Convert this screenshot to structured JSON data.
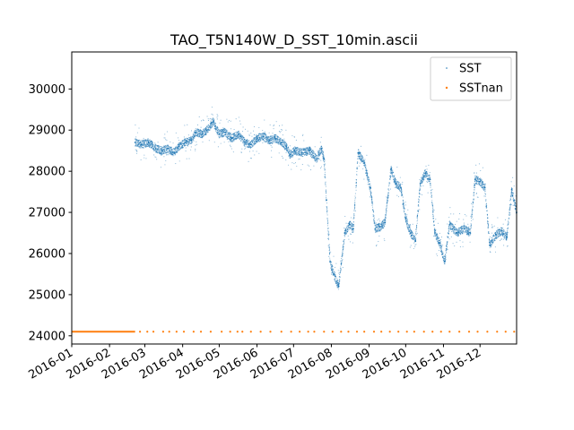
{
  "chart_data": {
    "type": "scatter",
    "title": "TAO_T5N140W_D_SST_10min.ascii",
    "xlabel": "",
    "ylabel": "",
    "x_range": [
      "2016-01-01",
      "2016-12-31"
    ],
    "ylim": [
      23800,
      30900
    ],
    "x_ticks": [
      "2016-01",
      "2016-02",
      "2016-03",
      "2016-04",
      "2016-05",
      "2016-06",
      "2016-07",
      "2016-08",
      "2016-09",
      "2016-10",
      "2016-11",
      "2016-12"
    ],
    "y_ticks": [
      24000,
      25000,
      26000,
      27000,
      28000,
      29000,
      30000
    ],
    "y_tick_labels": [
      "24000",
      "25000",
      "26000",
      "27000",
      "28000",
      "29000",
      "30000"
    ],
    "grid": false,
    "legend_position": "upper right",
    "series": [
      {
        "name": "SST",
        "color": "#1f77b4",
        "x": [
          "2016-02-22",
          "2016-02-27",
          "2016-03-04",
          "2016-03-10",
          "2016-03-15",
          "2016-03-20",
          "2016-03-25",
          "2016-03-29",
          "2016-04-03",
          "2016-04-08",
          "2016-04-12",
          "2016-04-17",
          "2016-04-21",
          "2016-04-26",
          "2016-05-01",
          "2016-05-06",
          "2016-05-11",
          "2016-05-17",
          "2016-05-22",
          "2016-05-27",
          "2016-06-01",
          "2016-06-06",
          "2016-06-11",
          "2016-06-16",
          "2016-06-21",
          "2016-06-25",
          "2016-06-28",
          "2016-07-02",
          "2016-07-08",
          "2016-07-14",
          "2016-07-20",
          "2016-07-24",
          "2016-07-26",
          "2016-07-28",
          "2016-07-31",
          "2016-08-03",
          "2016-08-07",
          "2016-08-12",
          "2016-08-16",
          "2016-08-19",
          "2016-08-23",
          "2016-08-28",
          "2016-09-02",
          "2016-09-06",
          "2016-09-10",
          "2016-09-14",
          "2016-09-19",
          "2016-09-23",
          "2016-09-27",
          "2016-10-01",
          "2016-10-05",
          "2016-10-09",
          "2016-10-13",
          "2016-10-17",
          "2016-10-21",
          "2016-10-25",
          "2016-10-29",
          "2016-11-02",
          "2016-11-06",
          "2016-11-12",
          "2016-11-18",
          "2016-11-23",
          "2016-11-27",
          "2016-12-01",
          "2016-12-05",
          "2016-12-09",
          "2016-12-14",
          "2016-12-19",
          "2016-12-23",
          "2016-12-27",
          "2016-12-31"
        ],
        "y": [
          28700,
          28650,
          28700,
          28550,
          28500,
          28550,
          28450,
          28600,
          28700,
          28750,
          28950,
          28900,
          29000,
          29200,
          28900,
          28950,
          28800,
          28900,
          28700,
          28650,
          28800,
          28850,
          28750,
          28800,
          28700,
          28600,
          28400,
          28500,
          28450,
          28500,
          28300,
          28550,
          28300,
          27300,
          25800,
          25500,
          25200,
          26500,
          26700,
          26600,
          28450,
          28200,
          27600,
          26600,
          26650,
          26750,
          28050,
          27700,
          27600,
          26850,
          26500,
          26300,
          27700,
          27950,
          27800,
          26500,
          26250,
          25800,
          26700,
          26500,
          26600,
          26500,
          27800,
          27750,
          27600,
          26200,
          26450,
          26550,
          26400,
          27550,
          27000
        ]
      },
      {
        "name": "SSTnan",
        "color": "#ff7f0e",
        "value": 24100,
        "dense_range": [
          "2016-01-01",
          "2016-02-22"
        ],
        "x": [
          "2016-02-26",
          "2016-03-03",
          "2016-03-08",
          "2016-03-16",
          "2016-03-21",
          "2016-03-27",
          "2016-04-02",
          "2016-04-10",
          "2016-04-16",
          "2016-04-24",
          "2016-05-03",
          "2016-05-10",
          "2016-05-16",
          "2016-05-20",
          "2016-05-27",
          "2016-06-04",
          "2016-06-12",
          "2016-06-21",
          "2016-06-29",
          "2016-07-06",
          "2016-07-13",
          "2016-07-18",
          "2016-07-26",
          "2016-08-02",
          "2016-08-09",
          "2016-08-15",
          "2016-08-22",
          "2016-08-28",
          "2016-09-05",
          "2016-09-11",
          "2016-09-18",
          "2016-09-25",
          "2016-10-02",
          "2016-10-08",
          "2016-10-16",
          "2016-10-23",
          "2016-10-30",
          "2016-11-06",
          "2016-11-14",
          "2016-11-22",
          "2016-11-29",
          "2016-12-07",
          "2016-12-15",
          "2016-12-22",
          "2016-12-29"
        ]
      }
    ]
  }
}
